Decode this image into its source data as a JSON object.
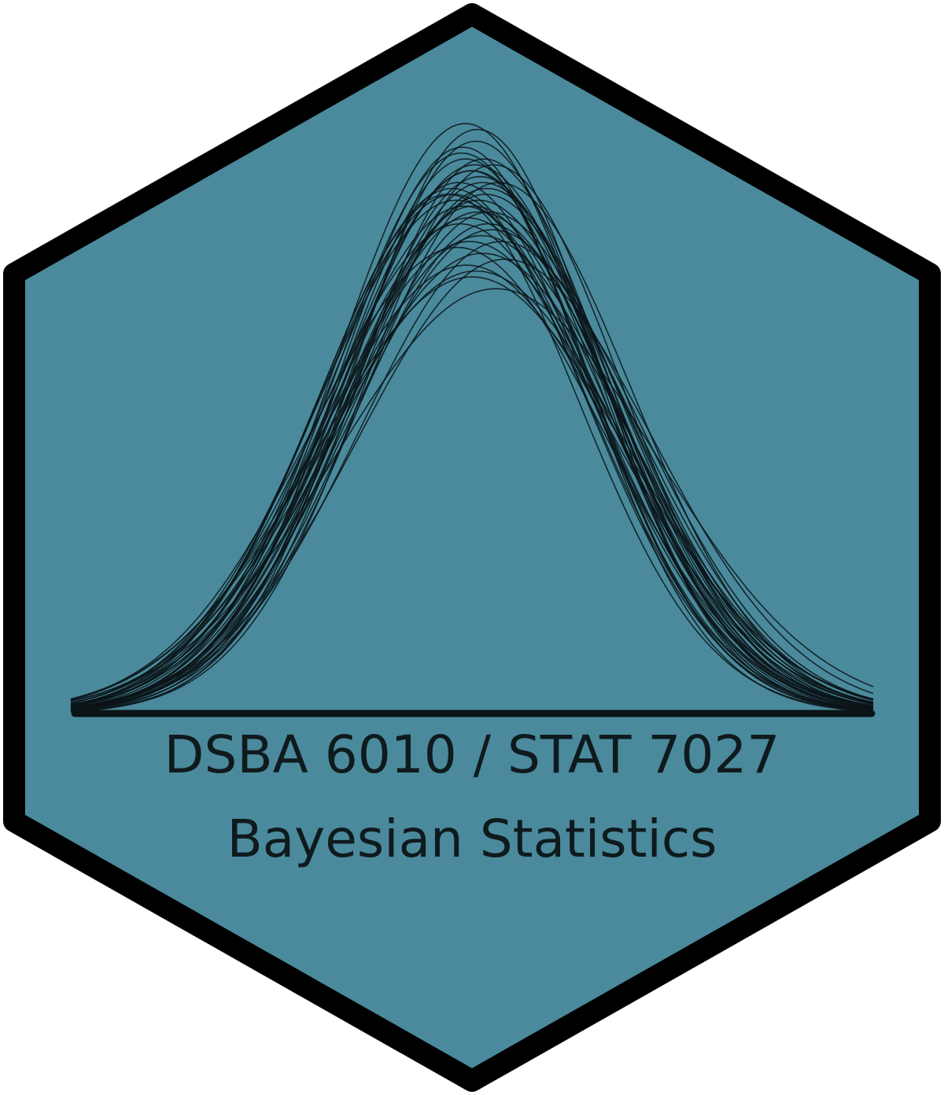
{
  "sticker": {
    "course_code": "DSBA 6010 / STAT 7027",
    "course_title": "Bayesian Statistics",
    "colors": {
      "fill": "#4a8a9c",
      "border": "#000000",
      "curves": "#0a1417",
      "text": "#0f1a1d",
      "background": "#ffffff"
    }
  },
  "curves": {
    "description_shape": "normal-density",
    "members": [
      {
        "mean": 0.0,
        "sd": 1.0,
        "peak": 0.92
      },
      {
        "mean": -0.05,
        "sd": 0.95,
        "peak": 1.0
      },
      {
        "mean": 0.05,
        "sd": 1.05,
        "peak": 0.85
      },
      {
        "mean": -0.1,
        "sd": 0.98,
        "peak": 0.9
      },
      {
        "mean": 0.1,
        "sd": 1.02,
        "peak": 0.88
      },
      {
        "mean": -0.02,
        "sd": 1.08,
        "peak": 0.8
      },
      {
        "mean": 0.03,
        "sd": 0.92,
        "peak": 0.97
      },
      {
        "mean": 0.08,
        "sd": 1.1,
        "peak": 0.78
      },
      {
        "mean": -0.08,
        "sd": 0.94,
        "peak": 0.95
      },
      {
        "mean": 0.12,
        "sd": 1.0,
        "peak": 0.83
      },
      {
        "mean": -0.12,
        "sd": 1.03,
        "peak": 0.87
      },
      {
        "mean": 0.02,
        "sd": 0.97,
        "peak": 0.93
      },
      {
        "mean": -0.04,
        "sd": 1.12,
        "peak": 0.76
      },
      {
        "mean": 0.06,
        "sd": 0.96,
        "peak": 0.91
      },
      {
        "mean": 0.15,
        "sd": 1.06,
        "peak": 0.82
      },
      {
        "mean": -0.15,
        "sd": 0.99,
        "peak": 0.89
      },
      {
        "mean": 0.0,
        "sd": 1.15,
        "peak": 0.74
      },
      {
        "mean": 0.04,
        "sd": 0.9,
        "peak": 0.99
      },
      {
        "mean": -0.06,
        "sd": 1.01,
        "peak": 0.86
      },
      {
        "mean": 0.09,
        "sd": 0.93,
        "peak": 0.94
      },
      {
        "mean": -0.03,
        "sd": 1.04,
        "peak": 0.84
      },
      {
        "mean": 0.2,
        "sd": 1.0,
        "peak": 0.9
      },
      {
        "mean": 0.18,
        "sd": 1.2,
        "peak": 0.72
      },
      {
        "mean": -0.18,
        "sd": 0.97,
        "peak": 0.88
      },
      {
        "mean": 0.01,
        "sd": 1.0,
        "peak": 0.86
      },
      {
        "mean": 0.07,
        "sd": 1.07,
        "peak": 0.81
      },
      {
        "mean": -0.07,
        "sd": 0.91,
        "peak": 0.96
      },
      {
        "mean": 0.11,
        "sd": 0.99,
        "peak": 0.89
      },
      {
        "mean": -0.11,
        "sd": 1.09,
        "peak": 0.79
      },
      {
        "mean": 0.13,
        "sd": 1.03,
        "peak": 0.85
      },
      {
        "mean": -0.01,
        "sd": 0.96,
        "peak": 0.92
      },
      {
        "mean": 0.25,
        "sd": 1.1,
        "peak": 0.77
      },
      {
        "mean": 0.05,
        "sd": 1.0,
        "peak": 0.87
      },
      {
        "mean": -0.09,
        "sd": 1.05,
        "peak": 0.83
      },
      {
        "mean": 0.16,
        "sd": 0.95,
        "peak": 0.93
      },
      {
        "mean": -0.14,
        "sd": 1.0,
        "peak": 0.88
      },
      {
        "mean": 0.03,
        "sd": 1.13,
        "peak": 0.75
      },
      {
        "mean": 0.22,
        "sd": 1.05,
        "peak": 0.8
      },
      {
        "mean": -0.05,
        "sd": 0.93,
        "peak": 0.94
      },
      {
        "mean": 0.08,
        "sd": 0.98,
        "peak": 0.9
      }
    ]
  }
}
